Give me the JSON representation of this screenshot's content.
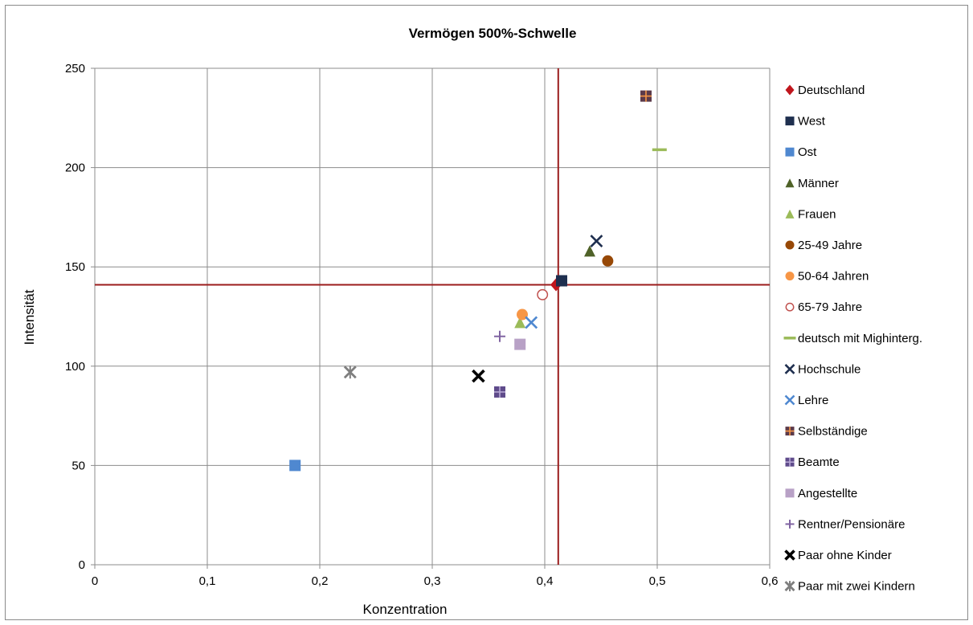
{
  "chart_data": {
    "type": "scatter",
    "title": "Vermögen 500%-Schwelle",
    "xlabel": "Konzentration",
    "ylabel": "Intensität",
    "xlim": [
      0,
      0.6
    ],
    "ylim": [
      0,
      250
    ],
    "x_ticks": [
      "0",
      "0,1",
      "0,2",
      "0,3",
      "0,4",
      "0,5",
      "0,6"
    ],
    "y_ticks": [
      "0",
      "50",
      "100",
      "150",
      "200",
      "250"
    ],
    "grid": true,
    "legend_position": "right",
    "reference_lines": {
      "x": 0.412,
      "y": 141,
      "color": "#9b1c1c"
    },
    "series": [
      {
        "name": "Deutschland",
        "x": 0.41,
        "y": 141,
        "marker": "diamond",
        "color": "#c0161d"
      },
      {
        "name": "West",
        "x": 0.415,
        "y": 143,
        "marker": "square",
        "color": "#1f2f4f"
      },
      {
        "name": "Ost",
        "x": 0.178,
        "y": 50,
        "marker": "square",
        "color": "#4f88d0"
      },
      {
        "name": "Männer",
        "x": 0.44,
        "y": 158,
        "marker": "triangle",
        "color": "#4f6228"
      },
      {
        "name": "Frauen",
        "x": 0.378,
        "y": 122,
        "marker": "triangle",
        "color": "#9bbb59"
      },
      {
        "name": "25-49 Jahre",
        "x": 0.456,
        "y": 153,
        "marker": "circle",
        "color": "#974806"
      },
      {
        "name": "50-64 Jahren",
        "x": 0.38,
        "y": 126,
        "marker": "circle",
        "color": "#f79646"
      },
      {
        "name": "65-79 Jahre",
        "x": 0.398,
        "y": 136,
        "marker": "circle-open",
        "color": "#c0504d"
      },
      {
        "name": "deutsch mit Mighinterg.",
        "x": 0.502,
        "y": 209,
        "marker": "dash",
        "color": "#9bbb59"
      },
      {
        "name": "Hochschule",
        "x": 0.446,
        "y": 163,
        "marker": "x",
        "color": "#1f2f4f"
      },
      {
        "name": "Lehre",
        "x": 0.388,
        "y": 122,
        "marker": "x",
        "color": "#4f88d0"
      },
      {
        "name": "Selbständige",
        "x": 0.49,
        "y": 236,
        "marker": "square-plus",
        "color": "#5b3a4a",
        "color2": "#f79646"
      },
      {
        "name": "Beamte",
        "x": 0.36,
        "y": 87,
        "marker": "square-plus",
        "color": "#5f4b8b",
        "color2": "#b7a8d4"
      },
      {
        "name": "Angestellte",
        "x": 0.378,
        "y": 111,
        "marker": "square",
        "color": "#b8a1c6"
      },
      {
        "name": "Rentner/Pensionäre",
        "x": 0.36,
        "y": 115,
        "marker": "plus",
        "color": "#8064a2"
      },
      {
        "name": "Paar ohne Kinder",
        "x": 0.341,
        "y": 95,
        "marker": "x-bold",
        "color": "#000000"
      },
      {
        "name": "Paar mit  zwei Kindern",
        "x": 0.227,
        "y": 97,
        "marker": "asterisk",
        "color": "#7f7f7f"
      }
    ]
  }
}
